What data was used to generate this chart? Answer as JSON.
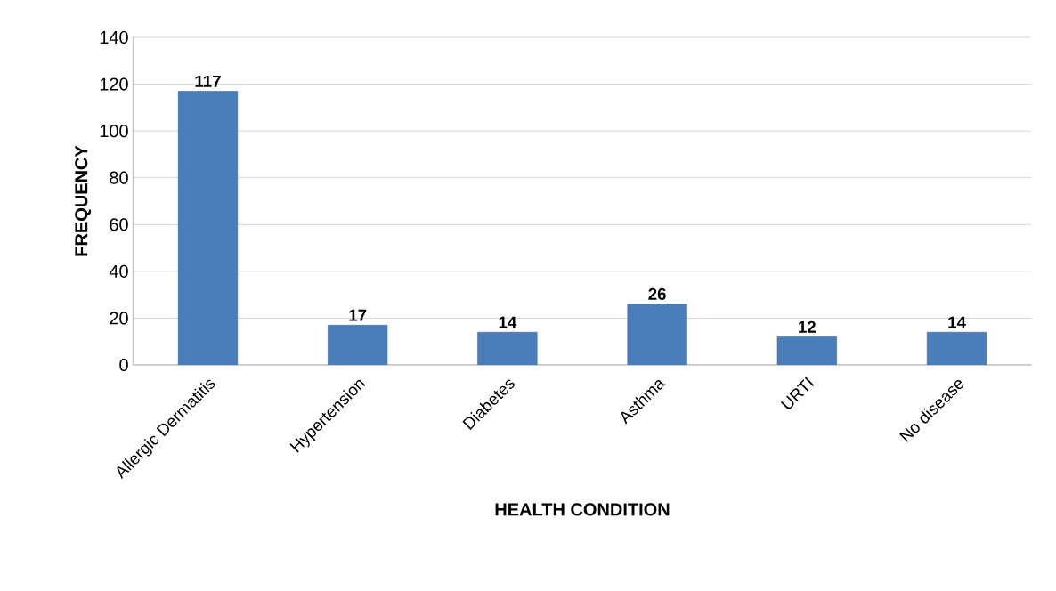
{
  "chart_data": {
    "type": "bar",
    "xlabel": "HEALTH CONDITION",
    "ylabel": "FREQUENCY",
    "categories": [
      "Allergic Dermatitis",
      "Hypertension",
      "Diabetes",
      "Asthma",
      "URTI",
      "No disease"
    ],
    "values": [
      117,
      17,
      14,
      26,
      12,
      14
    ],
    "color": "#4a7ebb",
    "ylim": [
      0,
      140
    ],
    "yticks": [
      0,
      20,
      40,
      60,
      80,
      100,
      120,
      140
    ],
    "grid": "y",
    "data_labels": true
  }
}
